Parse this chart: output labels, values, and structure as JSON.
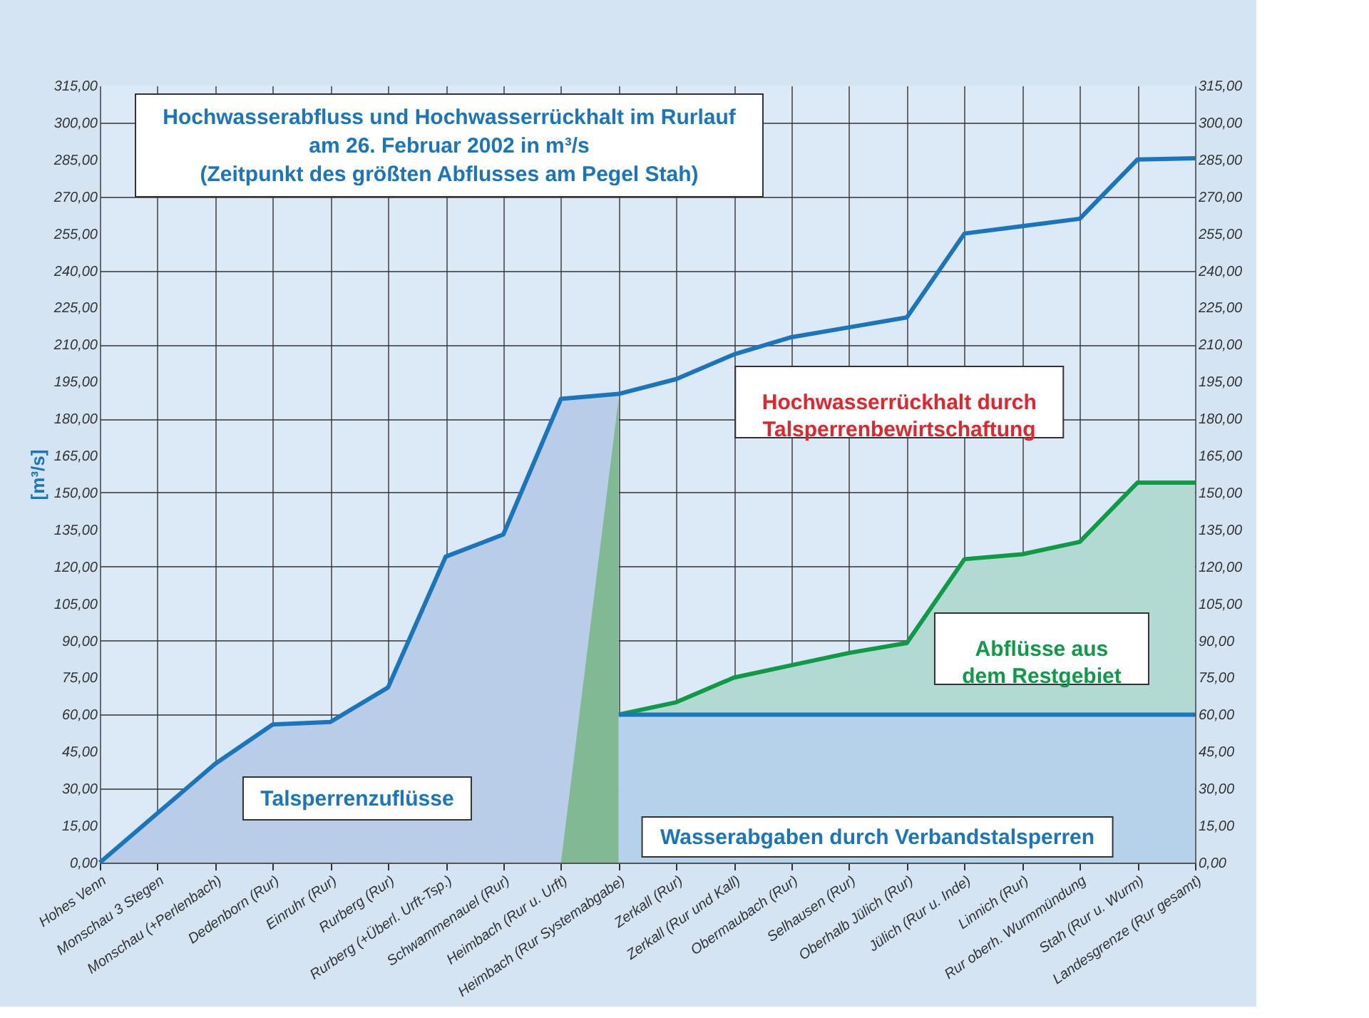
{
  "chart_data": {
    "type": "area",
    "title": "Hochwasserabfluss und Hochwasserrückhalt im Rurlauf\nam 26. Februar 2002 in m³/s\n(Zeitpunkt des größten Abflusses am Pegel Stah)",
    "ylabel": "[m³/s]",
    "categories": [
      "Hohes Venn",
      "Monschau 3 Stegen",
      "Monschau (+Perlenbach)",
      "Dedenborn (Rur)",
      "Einruhr (Rur)",
      "Rurberg (Rur)",
      "Rurberg (+Überl. Urft-Tsp.)",
      "Schwammenauel (Rur)",
      "Heimbach (Rur u. Urft)",
      "Heimbach (Rur Systemabgabe)",
      "Zerkall (Rur)",
      "Zerkall (Rur und Kall)",
      "Obermaubach (Rur)",
      "Selhausen (Rur)",
      "Oberhalb Jülich (Rur)",
      "Jülich (Rur u. Inde)",
      "Linnich (Rur)",
      "Rur oberh. Wurmmündung",
      "Stah (Rur u. Wurm)",
      "Landesgrenze (Rur gesamt)"
    ],
    "series": [
      {
        "color": "#b9cde8",
        "values": [
          0,
          20,
          40,
          56,
          57,
          71,
          124,
          133,
          188,
          190,
          null,
          null,
          null,
          null,
          null,
          null,
          null,
          null,
          null,
          null
        ]
      },
      {
        "color": "#0f9a48",
        "line_style": "solid",
        "values": [
          null,
          null,
          null,
          null,
          null,
          null,
          null,
          null,
          null,
          60,
          65,
          75,
          80,
          85,
          89,
          123,
          125,
          130,
          154,
          154
        ]
      },
      {
        "color": "#1a75bc",
        "line_style": "solid",
        "values": [
          null,
          null,
          null,
          null,
          null,
          null,
          null,
          null,
          null,
          60,
          60,
          60,
          60,
          60,
          60,
          60,
          60,
          60,
          60,
          60
        ]
      },
      {
        "color": "#82b995",
        "values": [
          null,
          null,
          null,
          null,
          null,
          null,
          null,
          null,
          0,
          188,
          null,
          null,
          null,
          null,
          null,
          null,
          null,
          null,
          null,
          null
        ]
      },
      {
        "type": "line",
        "color": "#1a75bc",
        "values": [
          0,
          20,
          40,
          56,
          57,
          71,
          124,
          133,
          188,
          190,
          196,
          206,
          213,
          217,
          221,
          255,
          258,
          261,
          285,
          285.5
        ]
      }
    ],
    "ylim": [
      0,
      315
    ],
    "yticks": [
      {
        "value": 0,
        "label": "0,00"
      },
      {
        "value": 15,
        "label": "15,00"
      },
      {
        "value": 30,
        "label": "30,00"
      },
      {
        "value": 45,
        "label": "45,00"
      },
      {
        "value": 60,
        "label": "60,00"
      },
      {
        "value": 75,
        "label": "75,00"
      },
      {
        "value": 90,
        "label": "90,00"
      },
      {
        "value": 105,
        "label": "105,00"
      },
      {
        "value": 120,
        "label": "120,00"
      },
      {
        "value": 135,
        "label": "135,00"
      },
      {
        "value": 150,
        "label": "150,00"
      },
      {
        "value": 165,
        "label": "165,00"
      },
      {
        "value": 180,
        "label": "180,00"
      },
      {
        "value": 195,
        "label": "195,00"
      },
      {
        "value": 210,
        "label": "210,00"
      },
      {
        "value": 225,
        "label": "225,00"
      },
      {
        "value": 240,
        "label": "240,00"
      },
      {
        "value": 255,
        "label": "255,00"
      },
      {
        "value": 270,
        "label": "270,00"
      },
      {
        "value": 285,
        "label": "285,00"
      },
      {
        "value": 300,
        "label": "300,00"
      },
      {
        "value": 315,
        "label": "315,00"
      }
    ],
    "y2lim": [
      0,
      315
    ],
    "y2ticks": [
      {
        "value": 0,
        "label": "0,00"
      },
      {
        "value": 15,
        "label": "15,00"
      },
      {
        "value": 30,
        "label": "30,00"
      },
      {
        "value": 45,
        "label": "45,00"
      },
      {
        "value": 60,
        "label": "60,00"
      },
      {
        "value": 75,
        "label": "75,00"
      },
      {
        "value": 90,
        "label": "90,00"
      },
      {
        "value": 105,
        "label": "105,00"
      },
      {
        "value": 120,
        "label": "120,00"
      },
      {
        "value": 135,
        "label": "135,00"
      },
      {
        "value": 150,
        "label": "150,00"
      },
      {
        "value": 165,
        "label": "165,00"
      },
      {
        "value": 180,
        "label": "180,00"
      },
      {
        "value": 195,
        "label": "195,00"
      },
      {
        "value": 210,
        "label": "210,00"
      },
      {
        "value": 225,
        "label": "225,00"
      },
      {
        "value": 240,
        "label": "240,00"
      },
      {
        "value": 255,
        "label": "255,00"
      },
      {
        "value": 270,
        "label": "270,00"
      },
      {
        "value": 285,
        "label": "285,00"
      },
      {
        "value": 300,
        "label": "300,00"
      },
      {
        "value": 315,
        "label": "315,00"
      }
    ],
    "grid": true,
    "annotations": [
      "Talsperrenzuflüsse",
      "Wasserabgaben durch Verbandstalsperren",
      "Hochwasserrückhalt durch\nTalsperrenbewirtschaftung",
      "Abflüsse aus\ndem Restgebiet"
    ]
  }
}
